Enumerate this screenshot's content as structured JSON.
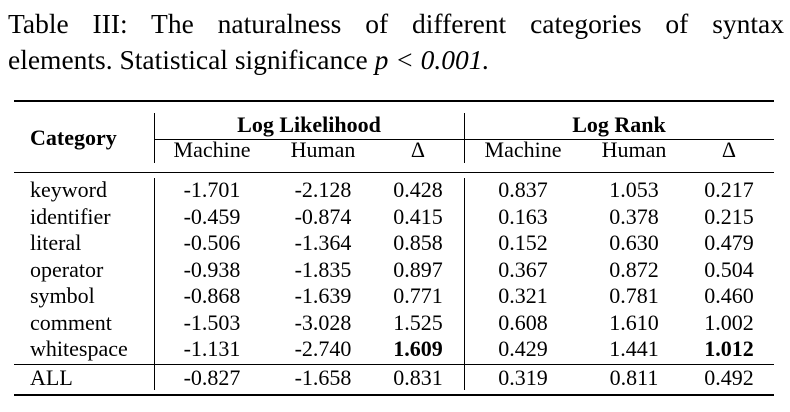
{
  "caption": {
    "line1": "Table III: The naturalness of different categories of syntax",
    "line2_text": "elements. Statistical significance ",
    "line2_math": "p < 0.001."
  },
  "table": {
    "category_header": "Category",
    "group_headers": [
      "Log Likelihood",
      "Log Rank"
    ],
    "sub_headers": [
      "Machine",
      "Human",
      "Δ",
      "Machine",
      "Human",
      "Δ"
    ],
    "rows": [
      {
        "category": "keyword",
        "values": [
          "-1.701",
          "-2.128",
          "0.428",
          "0.837",
          "1.053",
          "0.217"
        ]
      },
      {
        "category": "identifier",
        "values": [
          "-0.459",
          "-0.874",
          "0.415",
          "0.163",
          "0.378",
          "0.215"
        ]
      },
      {
        "category": "literal",
        "values": [
          "-0.506",
          "-1.364",
          "0.858",
          "0.152",
          "0.630",
          "0.479"
        ]
      },
      {
        "category": "operator",
        "values": [
          "-0.938",
          "-1.835",
          "0.897",
          "0.367",
          "0.872",
          "0.504"
        ]
      },
      {
        "category": "symbol",
        "values": [
          "-0.868",
          "-1.639",
          "0.771",
          "0.321",
          "0.781",
          "0.460"
        ]
      },
      {
        "category": "comment",
        "values": [
          "-1.503",
          "-3.028",
          "1.525",
          "0.608",
          "1.610",
          "1.002"
        ]
      },
      {
        "category": "whitespace",
        "values": [
          "-1.131",
          "-2.740",
          "1.609",
          "0.429",
          "1.441",
          "1.012"
        ]
      }
    ],
    "all_row": {
      "category": "ALL",
      "values": [
        "-0.827",
        "-1.658",
        "0.831",
        "0.319",
        "0.811",
        "0.492"
      ]
    },
    "bold_cells": [
      [
        6,
        2
      ],
      [
        6,
        5
      ]
    ]
  }
}
